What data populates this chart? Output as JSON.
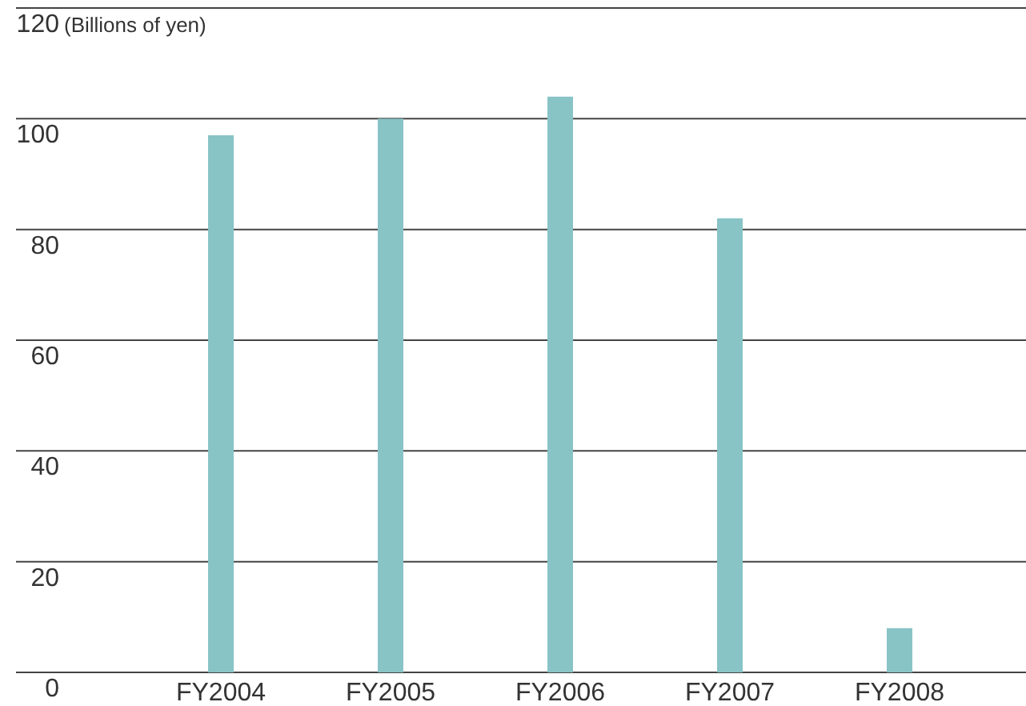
{
  "chart_data": {
    "type": "bar",
    "ylabel": "(Billions of yen)",
    "categories": [
      "FY2004",
      "FY2005",
      "FY2006",
      "FY2007",
      "FY2008"
    ],
    "values": [
      97,
      100,
      104,
      82,
      8
    ],
    "color": "#88c3c6",
    "ylim": [
      0,
      120
    ],
    "yticks": [
      0,
      20,
      40,
      60,
      80,
      100,
      120
    ],
    "grid": "y"
  }
}
